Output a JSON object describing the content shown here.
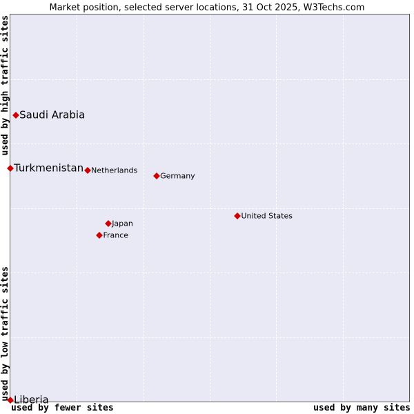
{
  "title": "Market position, selected server locations, 31 Oct 2025, W3Techs.com",
  "axis_labels": {
    "y_top": "used by high traffic sites",
    "y_bottom": "used by low traffic sites",
    "x_left": "used by fewer sites",
    "x_right": "used by many sites"
  },
  "style": {
    "marker_color": "#cc0000",
    "plot_background": "#e9e9f6",
    "grid_color": "#ffffff"
  },
  "chart_data": {
    "type": "scatter",
    "title": "Market position, selected server locations, 31 Oct 2025, W3Techs.com",
    "axes": {
      "y_top": "used by high traffic sites",
      "y_bottom": "used by low traffic sites",
      "x_left": "used by fewer sites",
      "x_right": "used by many sites"
    },
    "grid": {
      "enabled": true,
      "columns": 6,
      "rows": 6,
      "line_style": "dashed"
    },
    "layout_hint": "axes are qualitative (no numeric ticks); x_pct measured from left edge of plot area, y_pct from top edge, both 0-100",
    "points": [
      {
        "label": "Saudi Arabia",
        "x_pct": 1.4,
        "y_pct": 26.1,
        "label_size": "large"
      },
      {
        "label": "Turkmenistan",
        "x_pct": 0.0,
        "y_pct": 39.8,
        "label_size": "large"
      },
      {
        "label": "Netherlands",
        "x_pct": 19.4,
        "y_pct": 40.3,
        "label_size": "small"
      },
      {
        "label": "Germany",
        "x_pct": 36.7,
        "y_pct": 41.7,
        "label_size": "small"
      },
      {
        "label": "United States",
        "x_pct": 57.0,
        "y_pct": 52.0,
        "label_size": "small"
      },
      {
        "label": "Japan",
        "x_pct": 24.6,
        "y_pct": 54.0,
        "label_size": "small"
      },
      {
        "label": "France",
        "x_pct": 22.4,
        "y_pct": 57.0,
        "label_size": "small"
      },
      {
        "label": "Liberia",
        "x_pct": 0.0,
        "y_pct": 99.6,
        "label_size": "large"
      }
    ]
  }
}
